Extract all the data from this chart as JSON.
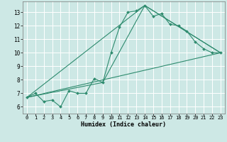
{
  "xlabel": "Humidex (Indice chaleur)",
  "ylabel": "",
  "xlim": [
    -0.5,
    23.5
  ],
  "ylim": [
    5.5,
    13.8
  ],
  "xticks": [
    0,
    1,
    2,
    3,
    4,
    5,
    6,
    7,
    8,
    9,
    10,
    11,
    12,
    13,
    14,
    15,
    16,
    17,
    18,
    19,
    20,
    21,
    22,
    23
  ],
  "yticks": [
    6,
    7,
    8,
    9,
    10,
    11,
    12,
    13
  ],
  "bg_color": "#cde8e5",
  "grid_color": "#ffffff",
  "line_color": "#2e8b6e",
  "lines": [
    {
      "x": [
        0,
        1,
        2,
        3,
        4,
        5,
        6,
        7,
        8,
        9,
        10,
        11,
        12,
        13,
        14,
        15,
        16,
        17,
        18,
        19,
        20,
        21,
        22,
        23
      ],
      "y": [
        6.7,
        7.0,
        6.4,
        6.5,
        6.0,
        7.2,
        7.0,
        7.0,
        8.1,
        7.8,
        10.0,
        11.9,
        13.0,
        13.1,
        13.5,
        12.7,
        12.9,
        12.1,
        12.0,
        11.6,
        10.8,
        10.3,
        10.0,
        10.0
      ],
      "has_markers": true
    },
    {
      "x": [
        0,
        23
      ],
      "y": [
        6.7,
        10.0
      ],
      "has_markers": false
    },
    {
      "x": [
        0,
        14,
        23
      ],
      "y": [
        6.7,
        13.5,
        10.0
      ],
      "has_markers": false
    },
    {
      "x": [
        0,
        9,
        14,
        23
      ],
      "y": [
        6.7,
        7.8,
        13.5,
        10.0
      ],
      "has_markers": false
    }
  ],
  "xlabel_fontsize": 6.0,
  "tick_fontsize_x": 5.0,
  "tick_fontsize_y": 5.5
}
